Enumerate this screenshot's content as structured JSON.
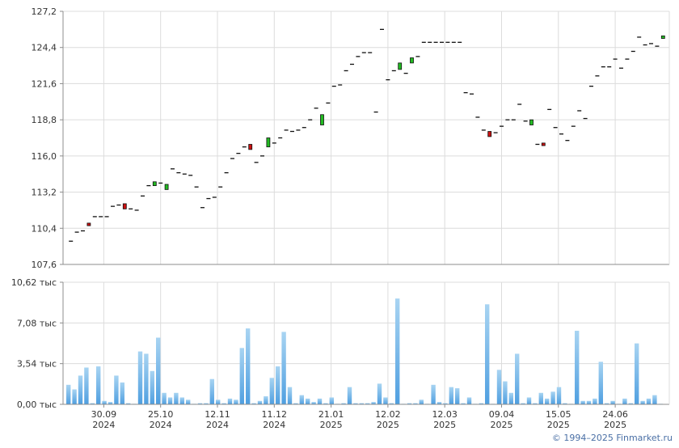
{
  "credit": "© 1994–2025 Finmarket.ru",
  "colors": {
    "grid": "#dcdcdc",
    "axis": "#8c8c8c",
    "up": "#22bb22",
    "down": "#cc1111",
    "flat": "#111111",
    "vol_top": "#a8d4f2",
    "vol_bottom": "#4f9fe0"
  },
  "x_labels": [
    {
      "i": 12,
      "day": "30.09",
      "year": "2024"
    },
    {
      "i": 31,
      "day": "25.10",
      "year": "2024"
    },
    {
      "i": 50,
      "day": "12.11",
      "year": "2024"
    },
    {
      "i": 69,
      "day": "11.12",
      "year": "2024"
    },
    {
      "i": 88,
      "day": "21.01",
      "year": "2025"
    },
    {
      "i": 107,
      "day": "12.02",
      "year": "2025"
    },
    {
      "i": 126,
      "day": "12.03",
      "year": "2025"
    },
    {
      "i": 145,
      "day": "09.04",
      "year": "2025"
    },
    {
      "i": 164,
      "day": "15.05",
      "year": "2025"
    },
    {
      "i": 183,
      "day": "24.06",
      "year": "2025"
    }
  ],
  "chart_data": [
    {
      "type": "candlestick",
      "ylim": [
        107.6,
        127.2
      ],
      "y_ticks": [
        "107,6",
        "110,4",
        "113,2",
        "116,0",
        "118,8",
        "121,6",
        "124,4",
        "127,2"
      ],
      "grid": true,
      "candles": [
        {
          "i": 1,
          "o": 109.4,
          "c": 109.4
        },
        {
          "i": 3,
          "o": 110.1,
          "c": 110.1
        },
        {
          "i": 5,
          "o": 110.2,
          "c": 110.2
        },
        {
          "i": 7,
          "o": 110.8,
          "c": 110.6
        },
        {
          "i": 9,
          "o": 111.3,
          "c": 111.3
        },
        {
          "i": 11,
          "o": 111.3,
          "c": 111.3
        },
        {
          "i": 13,
          "o": 111.3,
          "c": 111.3
        },
        {
          "i": 15,
          "o": 112.1,
          "c": 112.1
        },
        {
          "i": 17,
          "o": 112.2,
          "c": 112.2
        },
        {
          "i": 19,
          "o": 112.3,
          "c": 111.9
        },
        {
          "i": 21,
          "o": 111.9,
          "c": 111.9
        },
        {
          "i": 23,
          "o": 111.8,
          "c": 111.8
        },
        {
          "i": 25,
          "o": 112.9,
          "c": 112.9
        },
        {
          "i": 27,
          "o": 113.7,
          "c": 113.7
        },
        {
          "i": 29,
          "o": 113.7,
          "c": 114.0
        },
        {
          "i": 31,
          "o": 113.9,
          "c": 113.9
        },
        {
          "i": 33,
          "o": 113.4,
          "c": 113.8
        },
        {
          "i": 35,
          "o": 115.0,
          "c": 115.0
        },
        {
          "i": 37,
          "o": 114.7,
          "c": 114.7
        },
        {
          "i": 39,
          "o": 114.6,
          "c": 114.6
        },
        {
          "i": 41,
          "o": 114.5,
          "c": 114.5
        },
        {
          "i": 43,
          "o": 113.6,
          "c": 113.6
        },
        {
          "i": 45,
          "o": 112.0,
          "c": 112.0
        },
        {
          "i": 47,
          "o": 112.7,
          "c": 112.7
        },
        {
          "i": 49,
          "o": 112.8,
          "c": 112.8
        },
        {
          "i": 51,
          "o": 113.6,
          "c": 113.6
        },
        {
          "i": 53,
          "o": 114.7,
          "c": 114.7
        },
        {
          "i": 55,
          "o": 115.8,
          "c": 115.8
        },
        {
          "i": 57,
          "o": 116.2,
          "c": 116.2
        },
        {
          "i": 59,
          "o": 116.7,
          "c": 116.7
        },
        {
          "i": 61,
          "o": 116.9,
          "c": 116.5
        },
        {
          "i": 63,
          "o": 115.5,
          "c": 115.5
        },
        {
          "i": 65,
          "o": 116.0,
          "c": 116.0
        },
        {
          "i": 67,
          "o": 116.7,
          "c": 117.4
        },
        {
          "i": 69,
          "o": 117.0,
          "c": 117.0
        },
        {
          "i": 71,
          "o": 117.4,
          "c": 117.4
        },
        {
          "i": 73,
          "o": 118.0,
          "c": 118.0
        },
        {
          "i": 75,
          "o": 117.9,
          "c": 117.9
        },
        {
          "i": 77,
          "o": 118.0,
          "c": 118.0
        },
        {
          "i": 79,
          "o": 118.2,
          "c": 118.2
        },
        {
          "i": 81,
          "o": 118.8,
          "c": 118.8
        },
        {
          "i": 83,
          "o": 119.7,
          "c": 119.7
        },
        {
          "i": 85,
          "o": 118.4,
          "c": 119.2
        },
        {
          "i": 87,
          "o": 120.1,
          "c": 120.1
        },
        {
          "i": 89,
          "o": 121.4,
          "c": 121.4
        },
        {
          "i": 91,
          "o": 121.5,
          "c": 121.5
        },
        {
          "i": 93,
          "o": 122.6,
          "c": 122.6
        },
        {
          "i": 95,
          "o": 123.1,
          "c": 123.1
        },
        {
          "i": 97,
          "o": 123.7,
          "c": 123.7
        },
        {
          "i": 99,
          "o": 124.0,
          "c": 124.0
        },
        {
          "i": 101,
          "o": 124.0,
          "c": 124.0
        },
        {
          "i": 103,
          "o": 119.4,
          "c": 119.4
        },
        {
          "i": 105,
          "o": 125.8,
          "c": 125.8
        },
        {
          "i": 107,
          "o": 121.9,
          "c": 121.9
        },
        {
          "i": 109,
          "o": 122.6,
          "c": 122.6
        },
        {
          "i": 111,
          "o": 122.7,
          "c": 123.2
        },
        {
          "i": 113,
          "o": 122.4,
          "c": 122.4
        },
        {
          "i": 115,
          "o": 123.2,
          "c": 123.6
        },
        {
          "i": 117,
          "o": 123.7,
          "c": 123.7
        },
        {
          "i": 119,
          "o": 124.8,
          "c": 124.8
        },
        {
          "i": 121,
          "o": 124.8,
          "c": 124.8
        },
        {
          "i": 123,
          "o": 124.8,
          "c": 124.8
        },
        {
          "i": 125,
          "o": 124.8,
          "c": 124.8
        },
        {
          "i": 127,
          "o": 124.8,
          "c": 124.8
        },
        {
          "i": 129,
          "o": 124.8,
          "c": 124.8
        },
        {
          "i": 131,
          "o": 124.8,
          "c": 124.8
        },
        {
          "i": 133,
          "o": 120.9,
          "c": 120.9
        },
        {
          "i": 135,
          "o": 120.8,
          "c": 120.8
        },
        {
          "i": 137,
          "o": 119.0,
          "c": 119.0
        },
        {
          "i": 139,
          "o": 118.0,
          "c": 118.0
        },
        {
          "i": 141,
          "o": 117.9,
          "c": 117.5
        },
        {
          "i": 143,
          "o": 117.8,
          "c": 117.8
        },
        {
          "i": 145,
          "o": 118.3,
          "c": 118.3
        },
        {
          "i": 147,
          "o": 118.8,
          "c": 118.8
        },
        {
          "i": 149,
          "o": 118.8,
          "c": 118.8
        },
        {
          "i": 151,
          "o": 120.0,
          "c": 120.0
        },
        {
          "i": 153,
          "o": 118.7,
          "c": 118.7
        },
        {
          "i": 155,
          "o": 118.4,
          "c": 118.8
        },
        {
          "i": 157,
          "o": 116.9,
          "c": 116.9
        },
        {
          "i": 159,
          "o": 117.0,
          "c": 116.8
        },
        {
          "i": 161,
          "o": 119.6,
          "c": 119.6
        },
        {
          "i": 163,
          "o": 118.2,
          "c": 118.2
        },
        {
          "i": 165,
          "o": 117.7,
          "c": 117.7
        },
        {
          "i": 167,
          "o": 117.2,
          "c": 117.2
        },
        {
          "i": 169,
          "o": 118.3,
          "c": 118.3
        },
        {
          "i": 171,
          "o": 119.5,
          "c": 119.5
        },
        {
          "i": 173,
          "o": 118.9,
          "c": 118.9
        },
        {
          "i": 175,
          "o": 121.4,
          "c": 121.4
        },
        {
          "i": 177,
          "o": 122.2,
          "c": 122.2
        },
        {
          "i": 179,
          "o": 122.9,
          "c": 122.9
        },
        {
          "i": 181,
          "o": 122.9,
          "c": 122.9
        },
        {
          "i": 183,
          "o": 123.5,
          "c": 123.5
        },
        {
          "i": 185,
          "o": 122.8,
          "c": 122.8
        },
        {
          "i": 187,
          "o": 123.5,
          "c": 123.5
        },
        {
          "i": 189,
          "o": 124.1,
          "c": 124.1
        },
        {
          "i": 191,
          "o": 125.2,
          "c": 125.2
        },
        {
          "i": 193,
          "o": 124.6,
          "c": 124.6
        },
        {
          "i": 195,
          "o": 124.7,
          "c": 124.7
        },
        {
          "i": 197,
          "o": 124.5,
          "c": 124.5
        },
        {
          "i": 199,
          "o": 125.1,
          "c": 125.3
        }
      ]
    },
    {
      "type": "bar",
      "ylim": [
        0,
        10.62
      ],
      "y_ticks": [
        "0,00 тыс",
        "3,54 тыс",
        "7,08 тыс",
        "10,62 тыс"
      ],
      "grid": true,
      "volumes": [
        {
          "i": 1,
          "v": 1.7
        },
        {
          "i": 2,
          "v": 1.3
        },
        {
          "i": 3,
          "v": 2.5
        },
        {
          "i": 4,
          "v": 3.2
        },
        {
          "i": 5,
          "v": 0.1
        },
        {
          "i": 6,
          "v": 3.3
        },
        {
          "i": 7,
          "v": 0.3
        },
        {
          "i": 8,
          "v": 0.2
        },
        {
          "i": 9,
          "v": 2.5
        },
        {
          "i": 10,
          "v": 1.9
        },
        {
          "i": 11,
          "v": 0.1
        },
        {
          "i": 12,
          "v": 0.05
        },
        {
          "i": 13,
          "v": 4.6
        },
        {
          "i": 14,
          "v": 4.4
        },
        {
          "i": 15,
          "v": 2.9
        },
        {
          "i": 16,
          "v": 5.8
        },
        {
          "i": 17,
          "v": 1.0
        },
        {
          "i": 18,
          "v": 0.6
        },
        {
          "i": 19,
          "v": 1.0
        },
        {
          "i": 20,
          "v": 0.6
        },
        {
          "i": 21,
          "v": 0.4
        },
        {
          "i": 22,
          "v": 0.05
        },
        {
          "i": 23,
          "v": 0.1
        },
        {
          "i": 24,
          "v": 0.1
        },
        {
          "i": 25,
          "v": 2.2
        },
        {
          "i": 26,
          "v": 0.4
        },
        {
          "i": 27,
          "v": 0.1
        },
        {
          "i": 28,
          "v": 0.5
        },
        {
          "i": 29,
          "v": 0.4
        },
        {
          "i": 30,
          "v": 4.9
        },
        {
          "i": 31,
          "v": 6.6
        },
        {
          "i": 32,
          "v": 0.1
        },
        {
          "i": 33,
          "v": 0.3
        },
        {
          "i": 34,
          "v": 0.7
        },
        {
          "i": 35,
          "v": 2.3
        },
        {
          "i": 36,
          "v": 3.3
        },
        {
          "i": 37,
          "v": 6.3
        },
        {
          "i": 38,
          "v": 1.5
        },
        {
          "i": 39,
          "v": 0.1
        },
        {
          "i": 40,
          "v": 0.8
        },
        {
          "i": 41,
          "v": 0.5
        },
        {
          "i": 42,
          "v": 0.2
        },
        {
          "i": 43,
          "v": 0.5
        },
        {
          "i": 44,
          "v": 0.1
        },
        {
          "i": 45,
          "v": 0.6
        },
        {
          "i": 46,
          "v": 0.05
        },
        {
          "i": 47,
          "v": 0.1
        },
        {
          "i": 48,
          "v": 1.5
        },
        {
          "i": 49,
          "v": 0.1
        },
        {
          "i": 50,
          "v": 0.1
        },
        {
          "i": 51,
          "v": 0.1
        },
        {
          "i": 52,
          "v": 0.2
        },
        {
          "i": 53,
          "v": 1.8
        },
        {
          "i": 54,
          "v": 0.6
        },
        {
          "i": 55,
          "v": 0.1
        },
        {
          "i": 56,
          "v": 9.2
        },
        {
          "i": 57,
          "v": 0.05
        },
        {
          "i": 58,
          "v": 0.1
        },
        {
          "i": 59,
          "v": 0.1
        },
        {
          "i": 60,
          "v": 0.4
        },
        {
          "i": 61,
          "v": 0.05
        },
        {
          "i": 62,
          "v": 1.7
        },
        {
          "i": 63,
          "v": 0.2
        },
        {
          "i": 64,
          "v": 0.1
        },
        {
          "i": 65,
          "v": 1.5
        },
        {
          "i": 66,
          "v": 1.4
        },
        {
          "i": 67,
          "v": 0.1
        },
        {
          "i": 68,
          "v": 0.6
        },
        {
          "i": 69,
          "v": 0.05
        },
        {
          "i": 70,
          "v": 0.1
        },
        {
          "i": 71,
          "v": 8.7
        },
        {
          "i": 72,
          "v": 0.05
        },
        {
          "i": 73,
          "v": 3.0
        },
        {
          "i": 74,
          "v": 2.0
        },
        {
          "i": 75,
          "v": 1.0
        },
        {
          "i": 76,
          "v": 4.4
        },
        {
          "i": 77,
          "v": 0.1
        },
        {
          "i": 78,
          "v": 0.6
        },
        {
          "i": 79,
          "v": 0.1
        },
        {
          "i": 80,
          "v": 1.0
        },
        {
          "i": 81,
          "v": 0.5
        },
        {
          "i": 82,
          "v": 1.1
        },
        {
          "i": 83,
          "v": 1.5
        },
        {
          "i": 84,
          "v": 0.1
        },
        {
          "i": 85,
          "v": 0.05
        },
        {
          "i": 86,
          "v": 6.4
        },
        {
          "i": 87,
          "v": 0.3
        },
        {
          "i": 88,
          "v": 0.3
        },
        {
          "i": 89,
          "v": 0.5
        },
        {
          "i": 90,
          "v": 3.7
        },
        {
          "i": 91,
          "v": 0.1
        },
        {
          "i": 92,
          "v": 0.3
        },
        {
          "i": 93,
          "v": 0.05
        },
        {
          "i": 94,
          "v": 0.5
        },
        {
          "i": 95,
          "v": 0.1
        },
        {
          "i": 96,
          "v": 5.3
        },
        {
          "i": 97,
          "v": 0.3
        },
        {
          "i": 98,
          "v": 0.5
        },
        {
          "i": 99,
          "v": 0.8
        },
        {
          "i": 100,
          "v": 0.05
        }
      ]
    }
  ]
}
